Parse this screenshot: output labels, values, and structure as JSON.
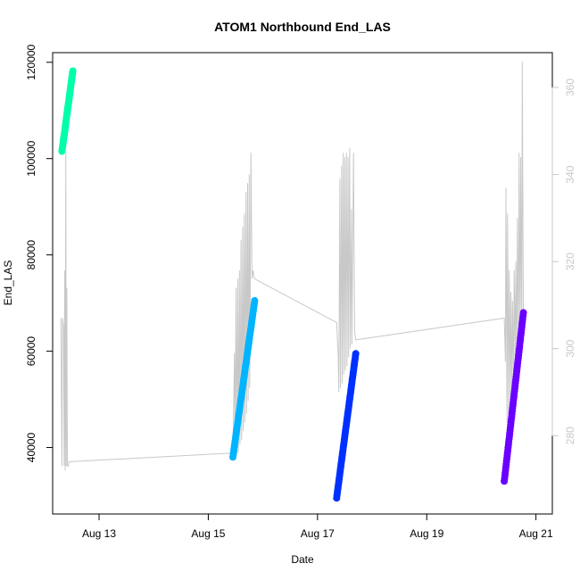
{
  "chart_data": {
    "type": "line",
    "title": "ATOM1 Northbound End_LAS",
    "xlabel": "Date",
    "ylabel": "End_LAS",
    "xlim": [
      12.15,
      21.3
    ],
    "ylim": [
      26200,
      122000
    ],
    "y2lim": [
      262,
      368
    ],
    "x_ticks": [
      {
        "value": 13,
        "label": "Aug 13"
      },
      {
        "value": 15,
        "label": "Aug 15"
      },
      {
        "value": 17,
        "label": "Aug 17"
      },
      {
        "value": 19,
        "label": "Aug 19"
      },
      {
        "value": 21,
        "label": "Aug 21"
      }
    ],
    "y_ticks": [
      {
        "value": 40000,
        "label": "40000"
      },
      {
        "value": 60000,
        "label": "60000"
      },
      {
        "value": 80000,
        "label": "80000"
      },
      {
        "value": 100000,
        "label": "100000"
      },
      {
        "value": 120000,
        "label": "120000"
      }
    ],
    "y2_ticks": [
      {
        "value": 280,
        "label": "280"
      },
      {
        "value": 300,
        "label": "300"
      },
      {
        "value": 320,
        "label": "320"
      },
      {
        "value": 340,
        "label": "340"
      },
      {
        "value": 360,
        "label": "360"
      }
    ],
    "grid": false,
    "colors": {
      "secondary_line": "#c8c8c8",
      "right_axis_text": "#c8c8c8",
      "series": [
        "#00ffa8",
        "#00b4ff",
        "#0030ff",
        "#6a00ff"
      ]
    },
    "series": [
      {
        "axis": "left",
        "color": "#00ffa8",
        "x": [
          12.32,
          12.36,
          12.4,
          12.44,
          12.48,
          12.52
        ],
        "y": [
          101500,
          104800,
          108200,
          111500,
          114900,
          118200
        ]
      },
      {
        "axis": "left",
        "color": "#00b4ff",
        "x": [
          15.45,
          15.53,
          15.61,
          15.69,
          15.77,
          15.85
        ],
        "y": [
          38000,
          44500,
          51000,
          57500,
          64000,
          70500
        ]
      },
      {
        "axis": "left",
        "color": "#0030ff",
        "x": [
          17.35,
          17.42,
          17.49,
          17.56,
          17.63,
          17.7
        ],
        "y": [
          29500,
          35500,
          41500,
          47500,
          53500,
          59500
        ]
      },
      {
        "axis": "left",
        "color": "#6a00ff",
        "x": [
          20.42,
          20.49,
          20.56,
          20.63,
          20.7,
          20.77
        ],
        "y": [
          33000,
          40000,
          47000,
          54000,
          61000,
          68000
        ]
      }
    ],
    "secondary_series": {
      "axis": "right",
      "color": "#c8c8c8",
      "x": [
        12.3,
        12.32,
        12.33,
        12.35,
        12.36,
        12.37,
        12.38,
        12.39,
        12.4,
        12.41,
        12.42,
        12.43,
        12.44,
        12.45,
        15.45,
        15.48,
        15.49,
        15.51,
        15.52,
        15.54,
        15.55,
        15.57,
        15.58,
        15.6,
        15.61,
        15.63,
        15.64,
        15.66,
        15.67,
        15.69,
        15.7,
        15.72,
        15.73,
        15.75,
        15.76,
        15.78,
        15.8,
        15.82,
        15.83,
        15.85,
        17.35,
        17.38,
        17.39,
        17.41,
        17.42,
        17.44,
        17.45,
        17.47,
        17.48,
        17.5,
        17.51,
        17.53,
        17.54,
        17.56,
        17.57,
        17.59,
        17.6,
        17.62,
        17.63,
        17.66,
        17.68,
        17.7,
        20.42,
        20.44,
        20.45,
        20.47,
        20.48,
        20.5,
        20.51,
        20.53,
        20.54,
        20.56,
        20.57,
        20.59,
        20.6,
        20.62,
        20.63,
        20.65,
        20.66,
        20.68,
        20.69,
        20.71,
        20.72,
        20.74,
        20.75,
        20.77
      ],
      "y": [
        307,
        273,
        307,
        305,
        273,
        318,
        272,
        345,
        273,
        314,
        273,
        273,
        273,
        274,
        276,
        299,
        276,
        314,
        276,
        316,
        276,
        318,
        278,
        325,
        279,
        328,
        281,
        331,
        283,
        336,
        285,
        338,
        288,
        340,
        291,
        345,
        316,
        318,
        317,
        316,
        306,
        298,
        290,
        339,
        291,
        342,
        292,
        345,
        294,
        344,
        295,
        345,
        296,
        344,
        298,
        346,
        300,
        332,
        301,
        345,
        304,
        302,
        307,
        297,
        337,
        283,
        331,
        285,
        318,
        287,
        313,
        289,
        311,
        293,
        318,
        296,
        320,
        297,
        330,
        300,
        345,
        302,
        344,
        303,
        366,
        303
      ]
    }
  }
}
